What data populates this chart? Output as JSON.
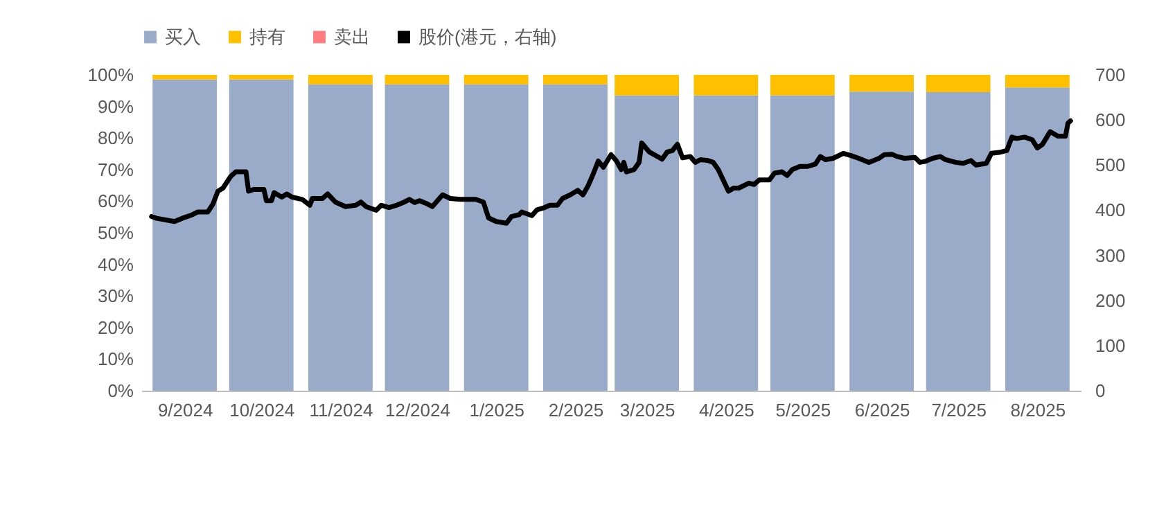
{
  "chart_data": {
    "type": "bar",
    "stacked": true,
    "legend": "top",
    "grid": false,
    "x": [
      "2024-09-15",
      "2024-10-15",
      "2024-11-15",
      "2024-12-15",
      "2025-01-15",
      "2025-02-15",
      "2025-03-15",
      "2025-04-15",
      "2025-05-15",
      "2025-06-15",
      "2025-07-15",
      "2025-08-15"
    ],
    "xlim": [
      "2024-08-29",
      "2025-09-01"
    ],
    "xticks": [
      {
        "value": "2024-09-15",
        "label": "9/2024"
      },
      {
        "value": "2024-10-15",
        "label": "10/2024"
      },
      {
        "value": "2024-11-15",
        "label": "11/2024"
      },
      {
        "value": "2024-12-15",
        "label": "12/2024"
      },
      {
        "value": "2025-01-15",
        "label": "1/2025"
      },
      {
        "value": "2025-02-15",
        "label": "2/2025"
      },
      {
        "value": "2025-03-15",
        "label": "3/2025"
      },
      {
        "value": "2025-04-15",
        "label": "4/2025"
      },
      {
        "value": "2025-05-15",
        "label": "5/2025"
      },
      {
        "value": "2025-06-15",
        "label": "6/2025"
      },
      {
        "value": "2025-07-15",
        "label": "7/2025"
      },
      {
        "value": "2025-08-15",
        "label": "8/2025"
      }
    ],
    "ylim": [
      0,
      100
    ],
    "yticks": [
      {
        "value": 0,
        "label": "0%"
      },
      {
        "value": 10,
        "label": "10%"
      },
      {
        "value": 20,
        "label": "20%"
      },
      {
        "value": 30,
        "label": "30%"
      },
      {
        "value": 40,
        "label": "40%"
      },
      {
        "value": 50,
        "label": "50%"
      },
      {
        "value": 60,
        "label": "60%"
      },
      {
        "value": 70,
        "label": "70%"
      },
      {
        "value": 80,
        "label": "80%"
      },
      {
        "value": 90,
        "label": "90%"
      },
      {
        "value": 100,
        "label": "100%"
      }
    ],
    "y2lim": [
      0,
      700
    ],
    "y2ticks": [
      0,
      100,
      200,
      300,
      400,
      500,
      600,
      700
    ],
    "series": [
      {
        "name": "买入",
        "color": "#9aaac9",
        "values": [
          98.5,
          98.5,
          97,
          97,
          97,
          97,
          93.5,
          93.5,
          93.5,
          94.7,
          94.5,
          96
        ]
      },
      {
        "name": "持有",
        "color": "#ffc000",
        "values": [
          1.5,
          1.5,
          3,
          3,
          3,
          3,
          6.5,
          6.5,
          6.5,
          5.3,
          5.5,
          4
        ]
      },
      {
        "name": "卖出",
        "color": "#ff7c80",
        "values": [
          0,
          0,
          0,
          0,
          0,
          0,
          0,
          0,
          0,
          0,
          0,
          0
        ]
      },
      {
        "name": "股价(港元，右轴)",
        "type": "line",
        "axis": "y2",
        "color": "#000000",
        "x": [
          "2024-09-02",
          "2024-09-04",
          "2024-09-11",
          "2024-09-14",
          "2024-09-18",
          "2024-09-20",
          "2024-09-24",
          "2024-09-26",
          "2024-09-28",
          "2024-09-30",
          "2024-10-03",
          "2024-10-05",
          "2024-10-09",
          "2024-10-10",
          "2024-10-12",
          "2024-10-16",
          "2024-10-17",
          "2024-10-19",
          "2024-10-20",
          "2024-10-23",
          "2024-10-25",
          "2024-10-27",
          "2024-10-31",
          "2024-11-03",
          "2024-11-04",
          "2024-11-08",
          "2024-11-10",
          "2024-11-13",
          "2024-11-17",
          "2024-11-21",
          "2024-11-23",
          "2024-11-25",
          "2024-11-29",
          "2024-12-01",
          "2024-12-04",
          "2024-12-07",
          "2024-12-10",
          "2024-12-12",
          "2024-12-14",
          "2024-12-16",
          "2024-12-19",
          "2024-12-21",
          "2024-12-25",
          "2024-12-28",
          "2025-01-01",
          "2025-01-07",
          "2025-01-10",
          "2025-01-12",
          "2025-01-15",
          "2025-01-19",
          "2025-01-21",
          "2025-01-24",
          "2025-01-25",
          "2025-01-29",
          "2025-01-31",
          "2025-02-03",
          "2025-02-05",
          "2025-02-08",
          "2025-02-10",
          "2025-02-13",
          "2025-02-16",
          "2025-02-18",
          "2025-02-20",
          "2025-02-22",
          "2025-02-24",
          "2025-02-26",
          "2025-03-01",
          "2025-03-03",
          "2025-03-05",
          "2025-03-06",
          "2025-03-07",
          "2025-03-10",
          "2025-03-12",
          "2025-03-13",
          "2025-03-16",
          "2025-03-21",
          "2025-03-23",
          "2025-03-25",
          "2025-03-27",
          "2025-03-29",
          "2025-04-01",
          "2025-04-03",
          "2025-04-05",
          "2025-04-08",
          "2025-04-10",
          "2025-04-12",
          "2025-04-16",
          "2025-04-18",
          "2025-04-20",
          "2025-04-24",
          "2025-04-26",
          "2025-04-28",
          "2025-05-02",
          "2025-05-04",
          "2025-05-07",
          "2025-05-09",
          "2025-05-11",
          "2025-05-14",
          "2025-05-17",
          "2025-05-20",
          "2025-05-22",
          "2025-05-24",
          "2025-05-27",
          "2025-05-31",
          "2025-06-03",
          "2025-06-06",
          "2025-06-10",
          "2025-06-14",
          "2025-06-16",
          "2025-06-19",
          "2025-06-21",
          "2025-06-24",
          "2025-06-28",
          "2025-06-30",
          "2025-07-02",
          "2025-07-05",
          "2025-07-08",
          "2025-07-10",
          "2025-07-14",
          "2025-07-17",
          "2025-07-20",
          "2025-07-22",
          "2025-07-26",
          "2025-07-28",
          "2025-07-31",
          "2025-08-03",
          "2025-08-05",
          "2025-08-07",
          "2025-08-10",
          "2025-08-13",
          "2025-08-15",
          "2025-08-17",
          "2025-08-20",
          "2025-08-23",
          "2025-08-26",
          "2025-08-27",
          "2025-08-28"
        ],
        "values": [
          386,
          382,
          375,
          382,
          390,
          396,
          396,
          413,
          442,
          449,
          475,
          485,
          485,
          442,
          446,
          446,
          421,
          421,
          439,
          429,
          436,
          429,
          424,
          411,
          426,
          426,
          436,
          418,
          408,
          411,
          418,
          408,
          400,
          411,
          406,
          411,
          418,
          424,
          417,
          421,
          414,
          408,
          434,
          426,
          424,
          424,
          418,
          383,
          375,
          371,
          386,
          390,
          396,
          388,
          401,
          406,
          411,
          411,
          426,
          434,
          444,
          434,
          454,
          480,
          509,
          495,
          523,
          510,
          490,
          506,
          485,
          490,
          506,
          549,
          529,
          513,
          529,
          532,
          546,
          516,
          519,
          506,
          512,
          510,
          506,
          490,
          442,
          449,
          449,
          460,
          457,
          467,
          467,
          482,
          485,
          477,
          490,
          497,
          497,
          502,
          519,
          512,
          515,
          526,
          521,
          515,
          506,
          515,
          523,
          524,
          519,
          515,
          517,
          506,
          508,
          515,
          519,
          512,
          506,
          504,
          510,
          500,
          504,
          526,
          528,
          532,
          562,
          559,
          562,
          556,
          538,
          546,
          574,
          564,
          564,
          593,
          598
        ]
      }
    ]
  }
}
